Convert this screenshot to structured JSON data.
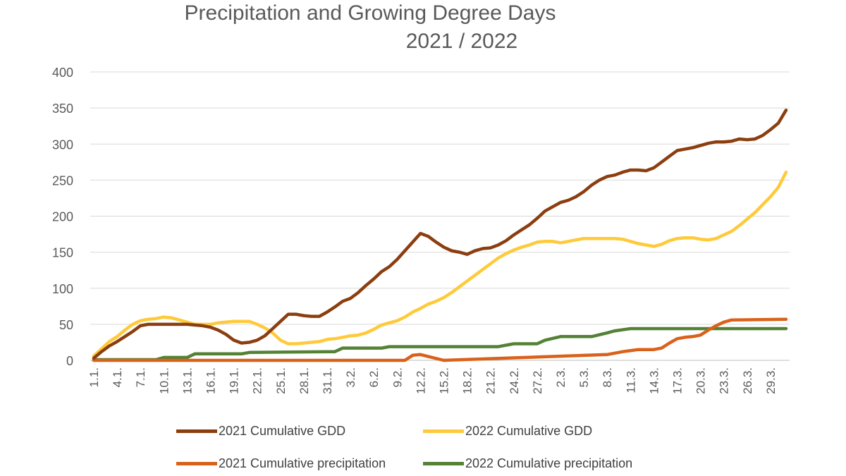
{
  "chart_data": {
    "type": "line",
    "title": "Precipitation and Growing Degree Days",
    "subtitle": "2021 / 2022",
    "xlabel": "",
    "ylabel": "",
    "ylim": [
      0,
      400
    ],
    "yticks": [
      0,
      50,
      100,
      150,
      200,
      250,
      300,
      350,
      400
    ],
    "grid": true,
    "legend_position": "bottom",
    "x_tick_labels": [
      "1.1.",
      "4.1.",
      "7.1.",
      "10.1.",
      "13.1.",
      "16.1.",
      "19.1.",
      "22.1.",
      "25.1.",
      "28.1.",
      "31.1.",
      "3.2.",
      "6.2.",
      "9.2.",
      "12.2.",
      "15.2.",
      "18.2.",
      "21.2.",
      "24.2.",
      "27.2.",
      "2.3.",
      "5.3.",
      "8.3.",
      "11.3.",
      "14.3.",
      "17.3.",
      "20.3.",
      "23.3.",
      "26.3.",
      "29.3."
    ],
    "x_start": "1.1.",
    "x_end": "31.3.",
    "series": [
      {
        "name": "2021 Cumulative GDD",
        "color": "#8B3E0F",
        "points": [
          [
            "1.1.",
            3
          ],
          [
            "2.1.",
            12
          ],
          [
            "3.1.",
            20
          ],
          [
            "4.1.",
            26
          ],
          [
            "5.1.",
            33
          ],
          [
            "6.1.",
            40
          ],
          [
            "7.1.",
            48
          ],
          [
            "8.1.",
            50
          ],
          [
            "9.1.",
            50
          ],
          [
            "10.1.",
            50
          ],
          [
            "11.1.",
            50
          ],
          [
            "12.1.",
            50
          ],
          [
            "13.1.",
            50
          ],
          [
            "14.1.",
            49
          ],
          [
            "15.1.",
            48
          ],
          [
            "16.1.",
            46
          ],
          [
            "17.1.",
            42
          ],
          [
            "18.1.",
            36
          ],
          [
            "19.1.",
            28
          ],
          [
            "20.1.",
            24
          ],
          [
            "21.1.",
            25
          ],
          [
            "22.1.",
            28
          ],
          [
            "23.1.",
            34
          ],
          [
            "24.1.",
            44
          ],
          [
            "25.1.",
            54
          ],
          [
            "26.1.",
            64
          ],
          [
            "27.1.",
            64
          ],
          [
            "28.1.",
            62
          ],
          [
            "29.1.",
            61
          ],
          [
            "30.1.",
            61
          ],
          [
            "31.1.",
            67
          ],
          [
            "1.2.",
            74
          ],
          [
            "2.2.",
            82
          ],
          [
            "3.2.",
            86
          ],
          [
            "4.2.",
            94
          ],
          [
            "5.2.",
            104
          ],
          [
            "6.2.",
            113
          ],
          [
            "7.2.",
            123
          ],
          [
            "8.2.",
            130
          ],
          [
            "9.2.",
            140
          ],
          [
            "10.2.",
            152
          ],
          [
            "11.2.",
            164
          ],
          [
            "12.2.",
            176
          ],
          [
            "13.2.",
            172
          ],
          [
            "14.2.",
            164
          ],
          [
            "15.2.",
            157
          ],
          [
            "16.2.",
            152
          ],
          [
            "17.2.",
            150
          ],
          [
            "18.2.",
            147
          ],
          [
            "19.2.",
            152
          ],
          [
            "20.2.",
            155
          ],
          [
            "21.2.",
            156
          ],
          [
            "22.2.",
            160
          ],
          [
            "23.2.",
            166
          ],
          [
            "24.2.",
            174
          ],
          [
            "25.2.",
            181
          ],
          [
            "26.2.",
            188
          ],
          [
            "27.2.",
            197
          ],
          [
            "28.2.",
            207
          ],
          [
            "1.3.",
            213
          ],
          [
            "2.3.",
            219
          ],
          [
            "3.3.",
            222
          ],
          [
            "4.3.",
            227
          ],
          [
            "5.3.",
            234
          ],
          [
            "6.3.",
            243
          ],
          [
            "7.3.",
            250
          ],
          [
            "8.3.",
            255
          ],
          [
            "9.3.",
            257
          ],
          [
            "10.3.",
            261
          ],
          [
            "11.3.",
            264
          ],
          [
            "12.3.",
            264
          ],
          [
            "13.3.",
            263
          ],
          [
            "14.3.",
            267
          ],
          [
            "15.3.",
            275
          ],
          [
            "16.3.",
            283
          ],
          [
            "17.3.",
            291
          ],
          [
            "18.3.",
            293
          ],
          [
            "19.3.",
            295
          ],
          [
            "20.3.",
            298
          ],
          [
            "21.3.",
            301
          ],
          [
            "22.3.",
            303
          ],
          [
            "23.3.",
            303
          ],
          [
            "24.3.",
            304
          ],
          [
            "25.3.",
            307
          ],
          [
            "26.3.",
            306
          ],
          [
            "27.3.",
            307
          ],
          [
            "28.3.",
            312
          ],
          [
            "29.3.",
            320
          ],
          [
            "30.3.",
            329
          ],
          [
            "31.3.",
            347
          ]
        ]
      },
      {
        "name": "2022 Cumulative GDD",
        "color": "#FFCA3A",
        "points": [
          [
            "1.1.",
            6
          ],
          [
            "2.1.",
            16
          ],
          [
            "3.1.",
            26
          ],
          [
            "4.1.",
            33
          ],
          [
            "5.1.",
            42
          ],
          [
            "6.1.",
            50
          ],
          [
            "7.1.",
            55
          ],
          [
            "8.1.",
            57
          ],
          [
            "9.1.",
            58
          ],
          [
            "10.1.",
            60
          ],
          [
            "11.1.",
            59
          ],
          [
            "12.1.",
            56
          ],
          [
            "13.1.",
            53
          ],
          [
            "14.1.",
            50
          ],
          [
            "15.1.",
            50
          ],
          [
            "16.1.",
            50
          ],
          [
            "17.1.",
            52
          ],
          [
            "18.1.",
            53
          ],
          [
            "19.1.",
            54
          ],
          [
            "20.1.",
            54
          ],
          [
            "21.1.",
            54
          ],
          [
            "22.1.",
            50
          ],
          [
            "23.1.",
            45
          ],
          [
            "24.1.",
            38
          ],
          [
            "25.1.",
            28
          ],
          [
            "26.1.",
            23
          ],
          [
            "27.1.",
            23
          ],
          [
            "28.1.",
            24
          ],
          [
            "29.1.",
            25
          ],
          [
            "30.1.",
            26
          ],
          [
            "31.1.",
            29
          ],
          [
            "1.2.",
            30
          ],
          [
            "2.2.",
            32
          ],
          [
            "3.2.",
            34
          ],
          [
            "4.2.",
            35
          ],
          [
            "5.2.",
            38
          ],
          [
            "6.2.",
            43
          ],
          [
            "7.2.",
            49
          ],
          [
            "8.2.",
            52
          ],
          [
            "9.2.",
            55
          ],
          [
            "10.2.",
            60
          ],
          [
            "11.2.",
            67
          ],
          [
            "12.2.",
            72
          ],
          [
            "13.2.",
            78
          ],
          [
            "14.2.",
            82
          ],
          [
            "15.2.",
            87
          ],
          [
            "16.2.",
            94
          ],
          [
            "17.2.",
            102
          ],
          [
            "18.2.",
            110
          ],
          [
            "19.2.",
            118
          ],
          [
            "20.2.",
            126
          ],
          [
            "21.2.",
            134
          ],
          [
            "22.2.",
            142
          ],
          [
            "23.2.",
            148
          ],
          [
            "24.2.",
            153
          ],
          [
            "25.2.",
            157
          ],
          [
            "26.2.",
            160
          ],
          [
            "27.2.",
            164
          ],
          [
            "28.2.",
            165
          ],
          [
            "1.3.",
            165
          ],
          [
            "2.3.",
            163
          ],
          [
            "3.3.",
            165
          ],
          [
            "4.3.",
            167
          ],
          [
            "5.3.",
            169
          ],
          [
            "6.3.",
            169
          ],
          [
            "7.3.",
            169
          ],
          [
            "8.3.",
            169
          ],
          [
            "9.3.",
            169
          ],
          [
            "10.3.",
            168
          ],
          [
            "11.3.",
            165
          ],
          [
            "12.3.",
            162
          ],
          [
            "13.3.",
            160
          ],
          [
            "14.3.",
            158
          ],
          [
            "15.3.",
            161
          ],
          [
            "16.3.",
            166
          ],
          [
            "17.3.",
            169
          ],
          [
            "18.3.",
            170
          ],
          [
            "19.3.",
            170
          ],
          [
            "20.3.",
            168
          ],
          [
            "21.3.",
            167
          ],
          [
            "22.3.",
            169
          ],
          [
            "23.3.",
            174
          ],
          [
            "24.3.",
            179
          ],
          [
            "25.3.",
            187
          ],
          [
            "26.3.",
            196
          ],
          [
            "27.3.",
            205
          ],
          [
            "28.3.",
            216
          ],
          [
            "29.3.",
            227
          ],
          [
            "30.3.",
            240
          ],
          [
            "31.3.",
            261
          ]
        ]
      },
      {
        "name": "2021 Cumulative precipitation",
        "color": "#D9621B",
        "points": [
          [
            "1.1.",
            0
          ],
          [
            "15.2.",
            0
          ],
          [
            "10.2.",
            0
          ],
          [
            "11.2.",
            7
          ],
          [
            "12.2.",
            8
          ],
          [
            "8.3.",
            8
          ],
          [
            "10.3.",
            12
          ],
          [
            "12.3.",
            15
          ],
          [
            "14.3.",
            15
          ],
          [
            "15.3.",
            17
          ],
          [
            "16.3.",
            24
          ],
          [
            "17.3.",
            30
          ],
          [
            "18.3.",
            32
          ],
          [
            "19.3.",
            33
          ],
          [
            "20.3.",
            35
          ],
          [
            "21.3.",
            42
          ],
          [
            "22.3.",
            48
          ],
          [
            "23.3.",
            53
          ],
          [
            "24.3.",
            56
          ],
          [
            "31.3.",
            57
          ]
        ]
      },
      {
        "name": "2022 Cumulative precipitation",
        "color": "#548235",
        "points": [
          [
            "1.1.",
            1
          ],
          [
            "9.1.",
            1
          ],
          [
            "10.1.",
            4
          ],
          [
            "13.1.",
            4
          ],
          [
            "14.1.",
            9
          ],
          [
            "20.1.",
            9
          ],
          [
            "21.1.",
            11
          ],
          [
            "31.1.",
            12
          ],
          [
            "1.2.",
            12
          ],
          [
            "2.2.",
            17
          ],
          [
            "7.2.",
            17
          ],
          [
            "8.2.",
            19
          ],
          [
            "22.2.",
            19
          ],
          [
            "23.2.",
            21
          ],
          [
            "24.2.",
            23
          ],
          [
            "27.2.",
            23
          ],
          [
            "28.2.",
            28
          ],
          [
            "2.3.",
            33
          ],
          [
            "6.3.",
            33
          ],
          [
            "8.3.",
            38
          ],
          [
            "9.3.",
            41
          ],
          [
            "11.3.",
            44
          ],
          [
            "31.3.",
            44
          ]
        ]
      }
    ]
  }
}
